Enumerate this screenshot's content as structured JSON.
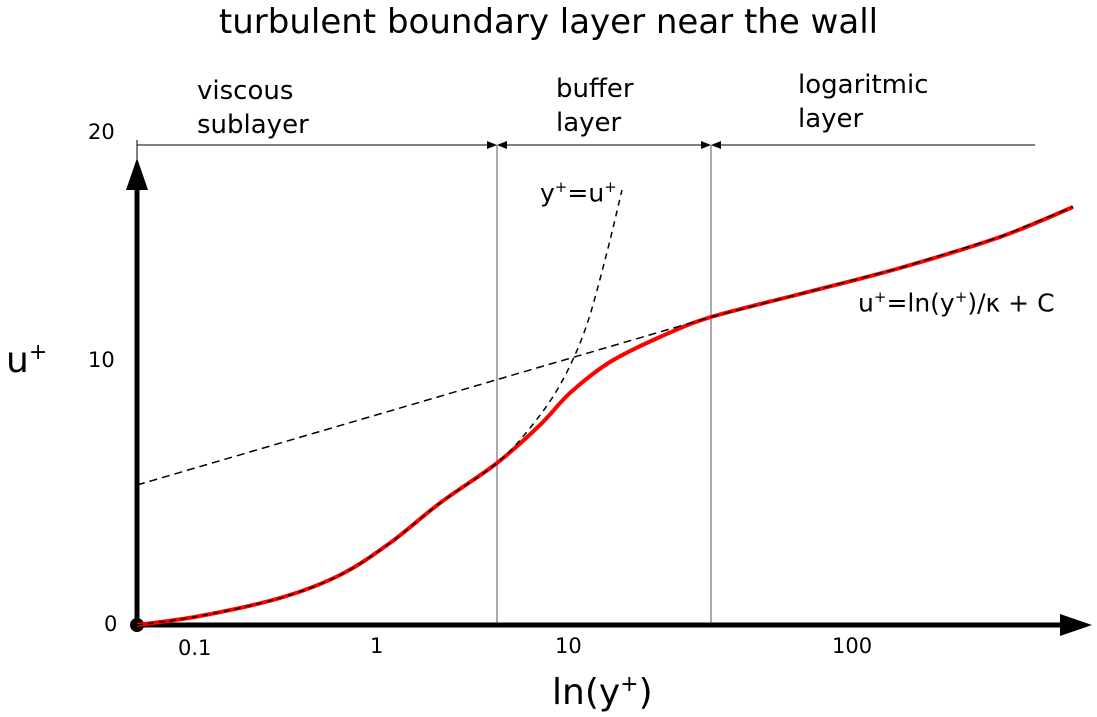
{
  "title": "turbulent boundary layer near the wall",
  "regions": [
    {
      "line1": "viscous",
      "line2": "sublayer"
    },
    {
      "line1": "buffer",
      "line2": "layer"
    },
    {
      "line1": "logaritmic",
      "line2": "layer"
    }
  ],
  "y_axis": {
    "label": "u",
    "label_sup": "+",
    "ticks": [
      "0",
      "10",
      "20"
    ]
  },
  "x_axis": {
    "label_pre": "ln(y",
    "label_sup": "+",
    "label_post": ")",
    "ticks": [
      "0.1",
      "1",
      "10",
      "100"
    ]
  },
  "annotations": {
    "linear_law": {
      "pre": "y",
      "sup1": "+",
      "mid": "=u",
      "sup2": "+"
    },
    "log_law": {
      "pre": "u",
      "sup1": "+",
      "mid": "=ln(y",
      "sup2": "+",
      "post": ")/κ + C"
    }
  },
  "colors": {
    "profile": "#ff0000",
    "axes": "#000000"
  }
}
